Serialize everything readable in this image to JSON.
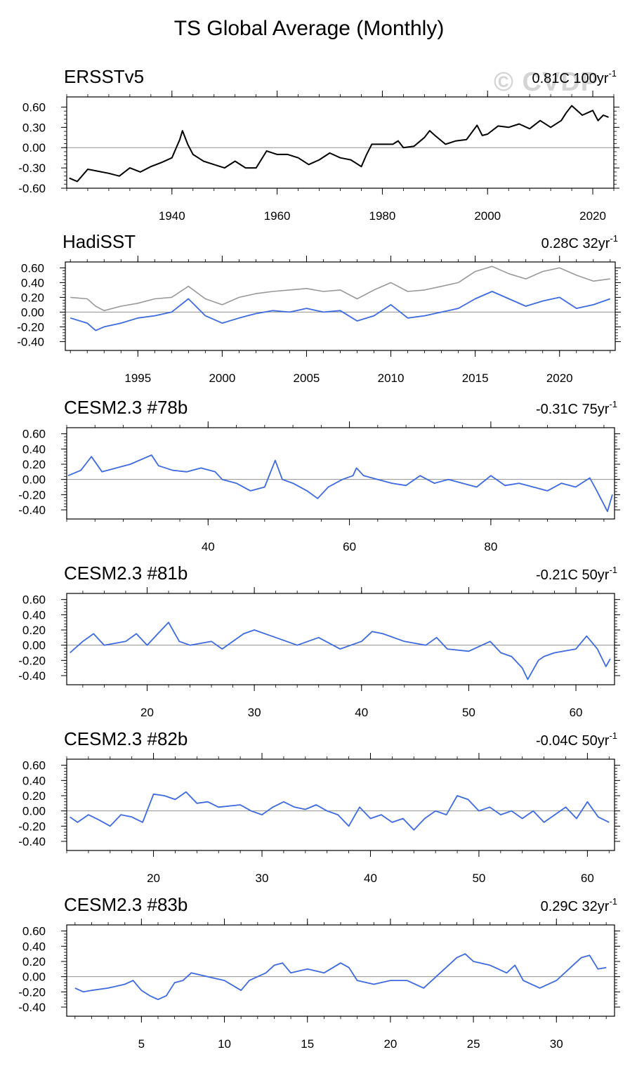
{
  "page_title": "TS Global Average (Monthly)",
  "watermark": "© CVDP",
  "colors": {
    "obs_line": "#000000",
    "model_line": "#3d6ae0",
    "obs_overlay": "#999999",
    "zero_line": "#909090",
    "frame": "#000000"
  },
  "chart_data": [
    {
      "type": "line",
      "title": "ERSSTv5",
      "trend_value": "0.81C 100yr",
      "trend_exp": "-1",
      "xlim": [
        1920,
        2024
      ],
      "ylim": [
        -0.6,
        0.75
      ],
      "yticks": [
        "0.60",
        "0.30",
        "0.00",
        "-0.30",
        "-0.60"
      ],
      "xticks": [
        "1940",
        "1960",
        "1980",
        "2000",
        "2020"
      ],
      "series": [
        {
          "name": "ERSSTv5",
          "color": "#000000",
          "x": [
            1920.5,
            1922,
            1924,
            1926,
            1928,
            1930,
            1932,
            1934,
            1936,
            1938,
            1940,
            1941.5,
            1942,
            1943,
            1944,
            1945,
            1946,
            1948,
            1950,
            1952,
            1954,
            1956,
            1958,
            1960,
            1962,
            1964,
            1966,
            1968,
            1970,
            1972,
            1974,
            1976,
            1977,
            1978,
            1980,
            1982,
            1983,
            1984,
            1986,
            1988,
            1989,
            1990,
            1992,
            1994,
            1996,
            1998,
            1999,
            2000,
            2002,
            2004,
            2006,
            2008,
            2010,
            2012,
            2014,
            2015,
            2016,
            2017,
            2018,
            2020,
            2021,
            2022,
            2023
          ],
          "y": [
            -0.45,
            -0.5,
            -0.32,
            -0.35,
            -0.38,
            -0.42,
            -0.3,
            -0.36,
            -0.28,
            -0.22,
            -0.15,
            0.12,
            0.25,
            0.05,
            -0.1,
            -0.15,
            -0.2,
            -0.25,
            -0.3,
            -0.2,
            -0.3,
            -0.3,
            -0.05,
            -0.1,
            -0.1,
            -0.15,
            -0.25,
            -0.18,
            -0.08,
            -0.15,
            -0.18,
            -0.28,
            -0.1,
            0.05,
            0.05,
            0.05,
            0.1,
            0.0,
            0.02,
            0.15,
            0.25,
            0.18,
            0.05,
            0.1,
            0.12,
            0.33,
            0.18,
            0.2,
            0.32,
            0.3,
            0.35,
            0.28,
            0.4,
            0.3,
            0.4,
            0.52,
            0.62,
            0.55,
            0.48,
            0.55,
            0.4,
            0.48,
            0.45
          ]
        }
      ]
    },
    {
      "type": "line",
      "title": "HadiSST",
      "trend_value": "0.28C 32yr",
      "trend_exp": "-1",
      "xlim": [
        1990.7,
        2023.3
      ],
      "ylim": [
        -0.52,
        0.68
      ],
      "yticks": [
        "0.60",
        "0.40",
        "0.20",
        "0.00",
        "-0.20",
        "-0.40"
      ],
      "xticks": [
        "1995",
        "2000",
        "2005",
        "2010",
        "2015",
        "2020"
      ],
      "series": [
        {
          "name": "ERSSTv5 overlay",
          "color": "#999999",
          "x": [
            1991,
            1992,
            1992.5,
            1993,
            1994,
            1995,
            1996,
            1997,
            1998,
            1999,
            2000,
            2001,
            2002,
            2003,
            2004,
            2005,
            2006,
            2007,
            2008,
            2009,
            2010,
            2011,
            2012,
            2013,
            2014,
            2015,
            2016,
            2017,
            2018,
            2019,
            2020,
            2021,
            2022,
            2023
          ],
          "y": [
            0.2,
            0.18,
            0.08,
            0.02,
            0.08,
            0.12,
            0.18,
            0.2,
            0.35,
            0.18,
            0.1,
            0.2,
            0.25,
            0.28,
            0.3,
            0.32,
            0.28,
            0.3,
            0.18,
            0.3,
            0.4,
            0.28,
            0.3,
            0.35,
            0.4,
            0.55,
            0.62,
            0.52,
            0.45,
            0.55,
            0.6,
            0.5,
            0.42,
            0.45
          ]
        },
        {
          "name": "HadiSST",
          "color": "#3d6ae0",
          "x": [
            1991,
            1992,
            1992.5,
            1993,
            1994,
            1995,
            1996,
            1997,
            1998,
            1999,
            2000,
            2001,
            2002,
            2003,
            2004,
            2005,
            2006,
            2007,
            2008,
            2009,
            2010,
            2011,
            2012,
            2013,
            2014,
            2015,
            2016,
            2017,
            2018,
            2019,
            2020,
            2021,
            2022,
            2023
          ],
          "y": [
            -0.08,
            -0.15,
            -0.25,
            -0.2,
            -0.15,
            -0.08,
            -0.05,
            0.0,
            0.18,
            -0.05,
            -0.15,
            -0.08,
            -0.02,
            0.02,
            0.0,
            0.05,
            0.0,
            0.02,
            -0.12,
            -0.05,
            0.1,
            -0.08,
            -0.05,
            0.0,
            0.05,
            0.18,
            0.28,
            0.18,
            0.08,
            0.15,
            0.2,
            0.05,
            0.1,
            0.18
          ]
        }
      ]
    },
    {
      "type": "line",
      "title": "CESM2.3 #78b",
      "trend_value": "-0.31C 75yr",
      "trend_exp": "-1",
      "xlim": [
        20,
        97.5
      ],
      "ylim": [
        -0.52,
        0.68
      ],
      "yticks": [
        "0.60",
        "0.40",
        "0.20",
        "0.00",
        "-0.20",
        "-0.40"
      ],
      "xticks": [
        "40",
        "60",
        "80"
      ],
      "series": [
        {
          "name": "CESM2.3 #78b",
          "color": "#3d6ae0",
          "x": [
            20.2,
            22,
            23.5,
            25,
            27,
            29,
            31,
            32,
            33,
            35,
            37,
            39,
            41,
            42,
            44,
            46,
            48,
            49.5,
            50.5,
            52,
            54,
            55.5,
            57,
            59,
            60.5,
            61,
            62,
            64,
            66,
            68,
            70,
            72,
            74,
            76,
            78,
            80,
            82,
            84,
            86,
            88,
            90,
            92,
            94,
            95,
            96.5,
            97.2
          ],
          "y": [
            0.05,
            0.12,
            0.3,
            0.1,
            0.15,
            0.2,
            0.28,
            0.32,
            0.18,
            0.12,
            0.1,
            0.15,
            0.1,
            0.0,
            -0.05,
            -0.15,
            -0.1,
            0.25,
            0.0,
            -0.05,
            -0.15,
            -0.25,
            -0.1,
            0.0,
            0.05,
            0.15,
            0.05,
            0.0,
            -0.05,
            -0.08,
            0.05,
            -0.05,
            0.0,
            -0.05,
            -0.1,
            0.05,
            -0.08,
            -0.05,
            -0.1,
            -0.15,
            -0.05,
            -0.1,
            0.02,
            -0.15,
            -0.42,
            -0.2
          ]
        }
      ]
    },
    {
      "type": "line",
      "title": "CESM2.3 #81b",
      "trend_value": "-0.21C 50yr",
      "trend_exp": "-1",
      "xlim": [
        12.5,
        63.6
      ],
      "ylim": [
        -0.52,
        0.68
      ],
      "yticks": [
        "0.60",
        "0.40",
        "0.20",
        "0.00",
        "-0.20",
        "-0.40"
      ],
      "xticks": [
        "20",
        "30",
        "40",
        "50",
        "60"
      ],
      "series": [
        {
          "name": "CESM2.3 #81b",
          "color": "#3d6ae0",
          "x": [
            12.8,
            14,
            15,
            16,
            18,
            19,
            20,
            21,
            22,
            23,
            24,
            26,
            27,
            29,
            30,
            32,
            34,
            36,
            38,
            40,
            41,
            42,
            44,
            46,
            47,
            48,
            50,
            52,
            53,
            54,
            55,
            55.5,
            56.5,
            57,
            58,
            60,
            61,
            62,
            62.8,
            63.2
          ],
          "y": [
            -0.1,
            0.05,
            0.15,
            0.0,
            0.05,
            0.15,
            0.0,
            0.15,
            0.3,
            0.05,
            0.0,
            0.05,
            -0.05,
            0.15,
            0.2,
            0.1,
            0.0,
            0.1,
            -0.05,
            0.05,
            0.18,
            0.15,
            0.05,
            0.0,
            0.1,
            -0.05,
            -0.08,
            0.05,
            -0.1,
            -0.15,
            -0.3,
            -0.45,
            -0.2,
            -0.15,
            -0.1,
            -0.05,
            0.12,
            -0.05,
            -0.28,
            -0.18
          ]
        }
      ]
    },
    {
      "type": "line",
      "title": "CESM2.3 #82b",
      "trend_value": "-0.04C 50yr",
      "trend_exp": "-1",
      "xlim": [
        12,
        62.5
      ],
      "ylim": [
        -0.52,
        0.68
      ],
      "yticks": [
        "0.60",
        "0.40",
        "0.20",
        "0.00",
        "-0.20",
        "-0.40"
      ],
      "xticks": [
        "20",
        "30",
        "40",
        "50",
        "60"
      ],
      "series": [
        {
          "name": "CESM2.3 #82b",
          "color": "#3d6ae0",
          "x": [
            12.3,
            13,
            14,
            15,
            16,
            17,
            18,
            19,
            20,
            21,
            22,
            23,
            24,
            25,
            26,
            28,
            29,
            30,
            31,
            32,
            33,
            34,
            35,
            36,
            37,
            38,
            39,
            40,
            41,
            42,
            43,
            44,
            45,
            46,
            47,
            48,
            49,
            50,
            51,
            52,
            53,
            54,
            55,
            56,
            57,
            58,
            59,
            60,
            61,
            62
          ],
          "y": [
            -0.08,
            -0.15,
            -0.05,
            -0.12,
            -0.2,
            -0.05,
            -0.08,
            -0.15,
            0.22,
            0.2,
            0.15,
            0.25,
            0.1,
            0.12,
            0.05,
            0.08,
            0.0,
            -0.05,
            0.05,
            0.12,
            0.05,
            0.02,
            0.08,
            0.0,
            -0.05,
            -0.2,
            0.05,
            -0.1,
            -0.05,
            -0.15,
            -0.1,
            -0.25,
            -0.1,
            0.0,
            -0.05,
            0.2,
            0.15,
            0.0,
            0.05,
            -0.05,
            0.0,
            -0.1,
            0.0,
            -0.15,
            -0.05,
            0.05,
            -0.1,
            0.12,
            -0.08,
            -0.15
          ]
        }
      ]
    },
    {
      "type": "line",
      "title": "CESM2.3 #83b",
      "trend_value": "0.29C 32yr",
      "trend_exp": "-1",
      "xlim": [
        0.5,
        33.5
      ],
      "ylim": [
        -0.52,
        0.68
      ],
      "yticks": [
        "0.60",
        "0.40",
        "0.20",
        "0.00",
        "-0.20",
        "-0.40"
      ],
      "xticks": [
        "5",
        "10",
        "15",
        "20",
        "25",
        "30"
      ],
      "series": [
        {
          "name": "CESM2.3 #83b",
          "color": "#3d6ae0",
          "x": [
            1,
            1.5,
            2,
            3,
            4,
            4.5,
            5,
            5.5,
            6,
            6.5,
            7,
            7.5,
            8,
            9,
            10,
            11,
            11.5,
            12,
            12.5,
            13,
            13.5,
            14,
            15,
            16,
            17,
            17.5,
            18,
            19,
            20,
            21,
            22,
            23,
            24,
            24.5,
            25,
            26,
            26.5,
            27,
            27.5,
            28,
            29,
            30,
            31,
            31.5,
            32,
            32.5,
            33
          ],
          "y": [
            -0.15,
            -0.2,
            -0.18,
            -0.15,
            -0.1,
            -0.05,
            -0.18,
            -0.25,
            -0.3,
            -0.25,
            -0.08,
            -0.05,
            0.05,
            0.0,
            -0.05,
            -0.18,
            -0.05,
            0.0,
            0.05,
            0.15,
            0.18,
            0.05,
            0.1,
            0.05,
            0.18,
            0.12,
            -0.05,
            -0.1,
            -0.05,
            -0.05,
            -0.15,
            0.05,
            0.25,
            0.3,
            0.2,
            0.15,
            0.1,
            0.05,
            0.15,
            -0.05,
            -0.15,
            -0.05,
            0.15,
            0.25,
            0.28,
            0.1,
            0.12
          ]
        }
      ]
    }
  ]
}
